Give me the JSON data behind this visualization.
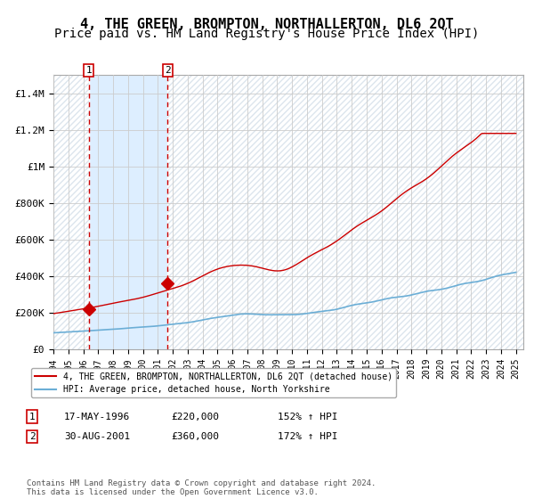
{
  "title": "4, THE GREEN, BROMPTON, NORTHALLERTON, DL6 2QT",
  "subtitle": "Price paid vs. HM Land Registry's House Price Index (HPI)",
  "title_fontsize": 11,
  "subtitle_fontsize": 10,
  "x_start_year": 1994,
  "x_end_year": 2025,
  "y_ticks": [
    0,
    200000,
    400000,
    600000,
    800000,
    1000000,
    1200000,
    1400000
  ],
  "y_tick_labels": [
    "£0",
    "£200K",
    "£400K",
    "£600K",
    "£800K",
    "£1M",
    "£1.2M",
    "£1.4M"
  ],
  "ylim": [
    0,
    1500000
  ],
  "sale1": {
    "date_label": "17-MAY-1996",
    "year": 1996.38,
    "price": 220000,
    "label": "152% ↑ HPI"
  },
  "sale2": {
    "date_label": "30-AUG-2001",
    "year": 2001.66,
    "price": 360000,
    "label": "172% ↑ HPI"
  },
  "hpi_line_color": "#6baed6",
  "price_line_color": "#cc0000",
  "sale_marker_color": "#cc0000",
  "dashed_line_color": "#cc0000",
  "shaded_region_color": "#ddeeff",
  "grid_color": "#cccccc",
  "hatch_color": "#cccccc",
  "legend_label_red": "4, THE GREEN, BROMPTON, NORTHALLERTON, DL6 2QT (detached house)",
  "legend_label_blue": "HPI: Average price, detached house, North Yorkshire",
  "annotation1_label": "1",
  "annotation2_label": "2",
  "table_rows": [
    [
      "1",
      "17-MAY-1996",
      "£220,000",
      "152% ↑ HPI"
    ],
    [
      "2",
      "30-AUG-2001",
      "£360,000",
      "172% ↑ HPI"
    ]
  ],
  "footer": "Contains HM Land Registry data © Crown copyright and database right 2024.\nThis data is licensed under the Open Government Licence v3.0.",
  "font_family": "monospace"
}
